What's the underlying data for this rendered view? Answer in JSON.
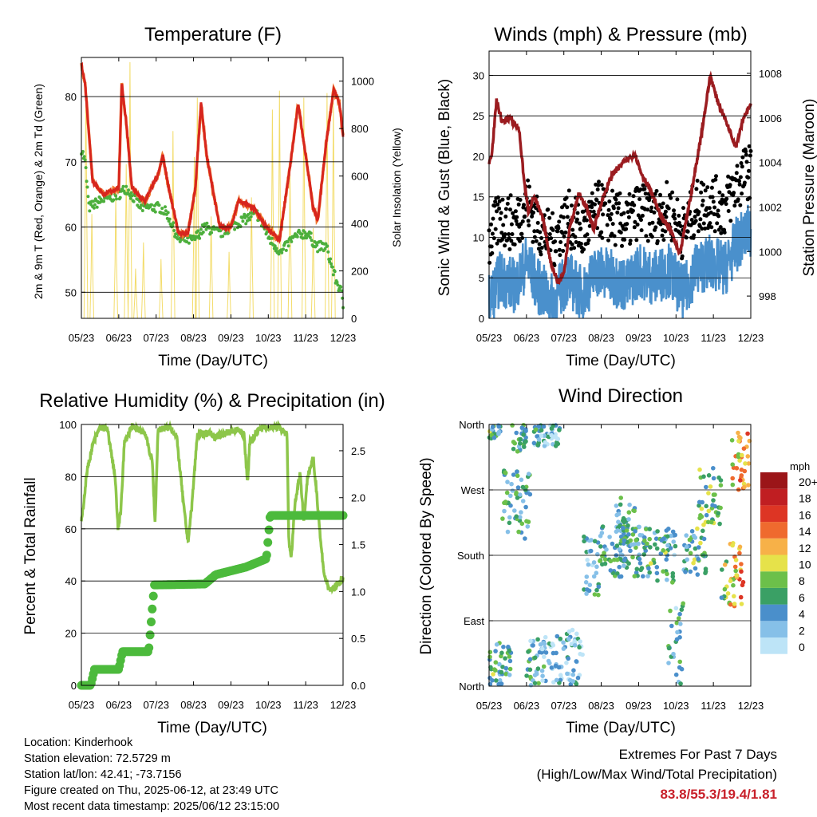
{
  "x_ticks": [
    "05/23",
    "06/23",
    "07/23",
    "08/23",
    "09/23",
    "10/23",
    "11/23",
    "12/23"
  ],
  "colors": {
    "temp2m": "#d7261e",
    "temp9m": "#f07830",
    "dewpoint": "#4caf3c",
    "solar": "#f3dc6a",
    "gust": "#000000",
    "wind": "#4a90cc",
    "pressure": "#9b1c20",
    "rh": "#8dc64a",
    "rain": "#4cba3c",
    "extremes": "#c8202a"
  },
  "charts": {
    "temperature": {
      "title": "Temperature (F)",
      "xlabel": "Time (Day/UTC)",
      "ylabel_left": "2m & 9m T (Red, Orange) & 2m Td (Green)",
      "ylabel_right": "Solar Insolation (Yellow)",
      "y_left_ticks": [
        "50",
        "60",
        "70",
        "80"
      ],
      "y_right_ticks": [
        "0",
        "200",
        "400",
        "600",
        "800",
        "1000"
      ]
    },
    "winds": {
      "title": "Winds (mph) & Pressure (mb)",
      "xlabel": "Time (Day/UTC)",
      "ylabel_left": "Sonic Wind & Gust (Blue, Black)",
      "ylabel_right": "Station Pressure (Maroon)",
      "y_left_ticks": [
        "0",
        "5",
        "10",
        "15",
        "20",
        "25",
        "30"
      ],
      "y_right_ticks": [
        "998",
        "1000",
        "1002",
        "1004",
        "1006",
        "1008"
      ]
    },
    "humidity": {
      "title": "Relative Humidity (%) & Precipitation (in)",
      "xlabel": "Time (Day/UTC)",
      "ylabel_left": "Percent & Total Rainfall",
      "y_left_ticks": [
        "0",
        "20",
        "40",
        "60",
        "80",
        "100"
      ],
      "y_right_ticks": [
        "0.0",
        "0.5",
        "1.0",
        "1.5",
        "2.0",
        "2.5"
      ]
    },
    "direction": {
      "title": "Wind Direction",
      "xlabel": "Time (Day/UTC)",
      "ylabel_left": "Direction (Colored By Speed)",
      "y_left_ticks": [
        "North",
        "East",
        "South",
        "West",
        "North"
      ],
      "legend_unit": "mph",
      "legend_labels": [
        "0",
        "2",
        "4",
        "6",
        "8",
        "10",
        "12",
        "14",
        "16",
        "18",
        "20+"
      ],
      "legend_colors": [
        "#bde4f7",
        "#86c0e8",
        "#4a8fcb",
        "#3aa065",
        "#6cc04a",
        "#e6e24a",
        "#f7b148",
        "#ef6a2e",
        "#dd3524",
        "#c01e22",
        "#9b1518"
      ]
    }
  },
  "chart_data": [
    {
      "type": "line",
      "title": "Temperature (F)",
      "xlabel": "Time (Day/UTC)",
      "ylabel": "2m & 9m T (Red, Orange) & 2m Td (Green)",
      "x": [
        "05/23",
        "06/23",
        "07/23",
        "08/23",
        "09/23",
        "10/23",
        "11/23",
        "12/23"
      ],
      "ylim": [
        46,
        86
      ],
      "y2lim": [
        0,
        1100
      ],
      "series": [
        {
          "name": "2m T",
          "y": [
            85,
            66,
            63,
            59,
            63,
            57,
            78,
            74
          ]
        },
        {
          "name": "9m T",
          "y": [
            84,
            66,
            63,
            59,
            63,
            57,
            79,
            75
          ]
        },
        {
          "name": "2m Td",
          "y": [
            72,
            63,
            62,
            58,
            61,
            55,
            56,
            48
          ]
        },
        {
          "name": "Solar Insolation",
          "y": [
            0,
            0,
            0,
            0,
            0,
            0,
            0,
            0
          ]
        }
      ]
    },
    {
      "type": "line",
      "title": "Winds (mph) & Pressure (mb)",
      "xlabel": "Time (Day/UTC)",
      "ylabel": "Sonic Wind & Gust (Blue, Black)",
      "x": [
        "05/23",
        "06/23",
        "07/23",
        "08/23",
        "09/23",
        "10/23",
        "11/23",
        "12/23"
      ],
      "ylim": [
        0,
        33
      ],
      "y2lim": [
        997,
        1009
      ],
      "series": [
        {
          "name": "Sonic Wind",
          "y": [
            3,
            4,
            2,
            4,
            5,
            5,
            5,
            12
          ]
        },
        {
          "name": "Gust",
          "y": [
            8,
            10,
            5,
            9,
            10,
            10,
            12,
            20
          ]
        },
        {
          "name": "Station Pressure",
          "y": [
            1004,
            1004,
            999,
            1002,
            1004,
            1000,
            1007,
            1006
          ]
        }
      ]
    },
    {
      "type": "line",
      "title": "Relative Humidity (%) & Precipitation (in)",
      "xlabel": "Time (Day/UTC)",
      "ylabel": "Percent & Total Rainfall",
      "x": [
        "05/23",
        "06/23",
        "07/23",
        "08/23",
        "09/23",
        "10/23",
        "11/23",
        "12/23"
      ],
      "ylim": [
        0,
        100
      ],
      "y2lim": [
        0,
        2.78
      ],
      "series": [
        {
          "name": "Relative Humidity",
          "y": [
            62,
            98,
            98,
            65,
            97,
            99,
            62,
            38
          ]
        },
        {
          "name": "Total Precipitation",
          "y": [
            0.0,
            0.17,
            0.36,
            1.1,
            1.17,
            1.27,
            1.81,
            1.81
          ]
        }
      ]
    },
    {
      "type": "scatter",
      "title": "Wind Direction",
      "xlabel": "Time (Day/UTC)",
      "ylabel": "Direction (Colored By Speed)",
      "x": [
        "05/23",
        "06/23",
        "07/23",
        "08/23",
        "09/23",
        "10/23",
        "11/23",
        "12/23"
      ],
      "y_categories": [
        "North",
        "East",
        "South",
        "West",
        "North"
      ],
      "series": [
        {
          "name": "Wind Direction",
          "y": [
            "North",
            "South",
            "North",
            "South",
            "South",
            "South",
            "South",
            "North"
          ]
        }
      ]
    }
  ],
  "footer": {
    "location": "Location: Kinderhook",
    "elevation": "Station elevation: 72.5729 m",
    "latlon": "Station lat/lon: 42.41; -73.7156",
    "created": "Figure created on Thu, 2025-06-12, at 23:49 UTC",
    "recent": "Most recent data timestamp: 2025/06/12 23:15:00"
  },
  "extremes": {
    "title": "Extremes For Past 7 Days",
    "subtitle": "(High/Low/Max Wind/Total Precipitation)",
    "values": "83.8/55.3/19.4/1.81"
  }
}
